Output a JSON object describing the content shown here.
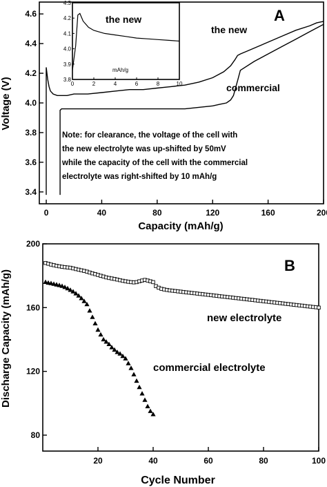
{
  "chart_data": [
    {
      "panel_label": "A",
      "type": "line",
      "xlabel": "Capacity  (mAh/g)",
      "ylabel": "Voltage  (V)",
      "xlim": [
        -5,
        200
      ],
      "ylim": [
        3.32,
        4.68
      ],
      "xticks": [
        0,
        40,
        80,
        120,
        160,
        200
      ],
      "yticks": [
        3.4,
        3.6,
        3.8,
        4.0,
        4.2,
        4.4,
        4.6
      ],
      "ytick_labels": [
        "3.4",
        "3.6",
        "3.8",
        "4.0",
        "4.2",
        "4.4",
        "4.6"
      ],
      "series": [
        {
          "name": "the new",
          "x": [
            0,
            0,
            1,
            2,
            3,
            5,
            8,
            10,
            15,
            20,
            30,
            40,
            50,
            60,
            70,
            80,
            90,
            100,
            110,
            120,
            128,
            133,
            136,
            138,
            140,
            145,
            150,
            160,
            170,
            180,
            190,
            195,
            200
          ],
          "y": [
            3.38,
            4.24,
            4.16,
            4.11,
            4.08,
            4.06,
            4.05,
            4.05,
            4.05,
            4.06,
            4.06,
            4.07,
            4.08,
            4.09,
            4.09,
            4.1,
            4.11,
            4.12,
            4.14,
            4.17,
            4.21,
            4.25,
            4.29,
            4.32,
            4.33,
            4.35,
            4.37,
            4.41,
            4.45,
            4.49,
            4.52,
            4.54,
            4.55
          ]
        },
        {
          "name": "commercial",
          "x": [
            10,
            10,
            11,
            20,
            40,
            60,
            80,
            100,
            110,
            120,
            125,
            130,
            133,
            135,
            138,
            140,
            150,
            160,
            170,
            180,
            190,
            200
          ],
          "y": [
            3.38,
            3.95,
            3.96,
            3.96,
            3.96,
            3.96,
            3.96,
            3.96,
            3.97,
            3.98,
            3.99,
            4.0,
            4.02,
            4.05,
            4.15,
            4.22,
            4.28,
            4.33,
            4.38,
            4.43,
            4.48,
            4.53
          ]
        }
      ],
      "annotations": [
        "the new",
        "commercial",
        "Note: for clearance, the voltage of the cell with",
        "the new electrolyte was up-shifted by 50mV",
        "while the capacity of the cell with the commercial",
        "electrolyte was right-shifted by 10 mAh/g"
      ],
      "inset": {
        "type": "line",
        "label": "the new",
        "xlabel": "mAh/g",
        "xlim": [
          0,
          10
        ],
        "ylim": [
          3.8,
          4.3
        ],
        "xticks": [
          0,
          2,
          4,
          6,
          8,
          10
        ],
        "yticks": [
          3.8,
          3.9,
          4.0,
          4.1,
          4.2,
          4.3
        ],
        "x": [
          0,
          0.3,
          0.5,
          0.7,
          1.0,
          1.5,
          2,
          3,
          4,
          5,
          6,
          7,
          8,
          9,
          10
        ],
        "y": [
          3.86,
          4.02,
          4.22,
          4.23,
          4.18,
          4.14,
          4.12,
          4.1,
          4.09,
          4.08,
          4.07,
          4.065,
          4.06,
          4.055,
          4.05
        ]
      }
    },
    {
      "panel_label": "B",
      "type": "scatter",
      "xlabel": "Cycle Number",
      "ylabel": "Discharge Capacity  (mAh/g)",
      "xlim": [
        0,
        100
      ],
      "ylim": [
        70,
        200
      ],
      "xticks": [
        20,
        40,
        60,
        80,
        100
      ],
      "yticks": [
        80,
        120,
        160,
        200
      ],
      "series": [
        {
          "name": "new electrolyte",
          "marker": "open-square",
          "x": [
            1,
            2,
            3,
            4,
            5,
            6,
            7,
            8,
            9,
            10,
            11,
            12,
            13,
            14,
            15,
            16,
            17,
            18,
            19,
            20,
            21,
            22,
            23,
            24,
            25,
            26,
            27,
            28,
            29,
            30,
            31,
            32,
            33,
            34,
            35,
            36,
            37,
            38,
            39,
            40,
            41,
            42,
            43,
            44,
            45,
            46,
            47,
            48,
            49,
            50,
            51,
            52,
            53,
            54,
            55,
            56,
            57,
            58,
            59,
            60,
            61,
            62,
            63,
            64,
            65,
            66,
            67,
            68,
            69,
            70,
            71,
            72,
            73,
            74,
            75,
            76,
            77,
            78,
            79,
            80,
            81,
            82,
            83,
            84,
            85,
            86,
            87,
            88,
            89,
            90,
            91,
            92,
            93,
            94,
            95,
            96,
            97,
            98,
            99,
            100
          ],
          "y": [
            188,
            187.5,
            187,
            186.6,
            186.2,
            185.9,
            185.6,
            185.4,
            185.2,
            185,
            184.6,
            184.2,
            183.8,
            183.4,
            183,
            182.6,
            182,
            181.5,
            181,
            180.5,
            180,
            179.5,
            179,
            178.6,
            178.3,
            178,
            177.6,
            177.2,
            176.8,
            176.5,
            176.2,
            176,
            175.8,
            176,
            176.5,
            177,
            177.4,
            177,
            176.5,
            176,
            173.5,
            172.5,
            171.8,
            171.4,
            171.1,
            170.8,
            170.6,
            170.4,
            170.2,
            170,
            169.8,
            169.6,
            169.4,
            169.2,
            169,
            168.8,
            168.6,
            168.4,
            168.2,
            168,
            167.8,
            167.6,
            167.4,
            167.2,
            167,
            166.8,
            166.6,
            166.4,
            166.2,
            166,
            165.8,
            165.6,
            165.4,
            165.2,
            165,
            164.8,
            164.6,
            164.4,
            164.2,
            164,
            163.8,
            163.6,
            163.4,
            163.2,
            163,
            162.8,
            162.6,
            162.4,
            162.2,
            162,
            161.8,
            161.6,
            161.4,
            161.2,
            161,
            160.8,
            160.6,
            160.4,
            160.2,
            160
          ]
        },
        {
          "name": "commercial electrolyte",
          "marker": "filled-triangle",
          "x": [
            1,
            2,
            3,
            4,
            5,
            6,
            7,
            8,
            9,
            10,
            11,
            12,
            13,
            14,
            15,
            16,
            17,
            18,
            19,
            20,
            21,
            22,
            23,
            24,
            25,
            26,
            27,
            28,
            29,
            30,
            31,
            32,
            33,
            34,
            35,
            36,
            37,
            38,
            39,
            40
          ],
          "y": [
            176,
            175.5,
            175.2,
            174.8,
            174.4,
            174,
            173.5,
            172.8,
            172,
            171,
            170,
            168.8,
            167.4,
            165.8,
            164,
            162,
            158,
            154,
            150,
            146,
            143,
            140,
            138.5,
            137,
            135,
            133.5,
            132,
            131,
            129.5,
            128,
            125,
            122,
            118,
            114,
            110,
            106,
            102,
            98,
            95,
            93
          ]
        }
      ]
    }
  ],
  "panels": {
    "a": {
      "label": "A"
    },
    "b": {
      "label": "B"
    }
  }
}
